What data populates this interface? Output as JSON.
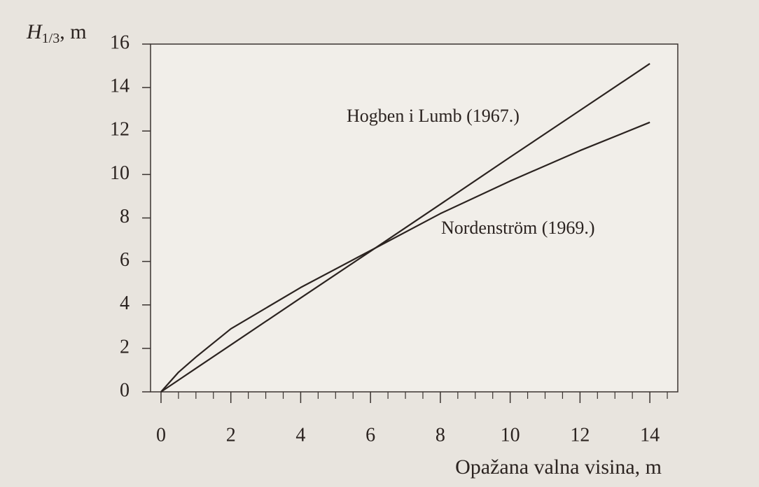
{
  "chart_data": {
    "type": "line",
    "y_label": {
      "main": "H",
      "sub": "1/3",
      "unit": ", m"
    },
    "x_label": "Opažana valna visina, m",
    "x": [
      0,
      0.5,
      1,
      2,
      4,
      6,
      8,
      10,
      12,
      14
    ],
    "series": [
      {
        "name": "Hogben i Lumb (1967.)",
        "color": "#2b2320",
        "values": [
          0,
          0.54,
          1.08,
          2.16,
          4.32,
          6.47,
          8.63,
          10.8,
          12.95,
          15.1
        ]
      },
      {
        "name": "Nordenström (1969.)",
        "color": "#2b2320",
        "values": [
          0,
          0.9,
          1.6,
          2.9,
          4.8,
          6.5,
          8.2,
          9.7,
          11.1,
          12.4
        ]
      }
    ],
    "xlim": [
      -0.3,
      14.8
    ],
    "ylim": [
      0,
      16
    ],
    "xticks": [
      0,
      2,
      4,
      6,
      8,
      10,
      12,
      14
    ],
    "xticks_minor": [
      -0.5,
      0.5,
      1,
      1.5,
      2.5,
      3,
      3.5,
      4.5,
      5,
      5.5,
      6.5,
      7,
      7.5,
      8.5,
      9,
      9.5,
      10.5,
      11,
      11.5,
      12.5,
      13,
      13.5,
      14.5
    ],
    "yticks": [
      0,
      2,
      4,
      6,
      8,
      10,
      12,
      14,
      16
    ],
    "grid": false
  }
}
